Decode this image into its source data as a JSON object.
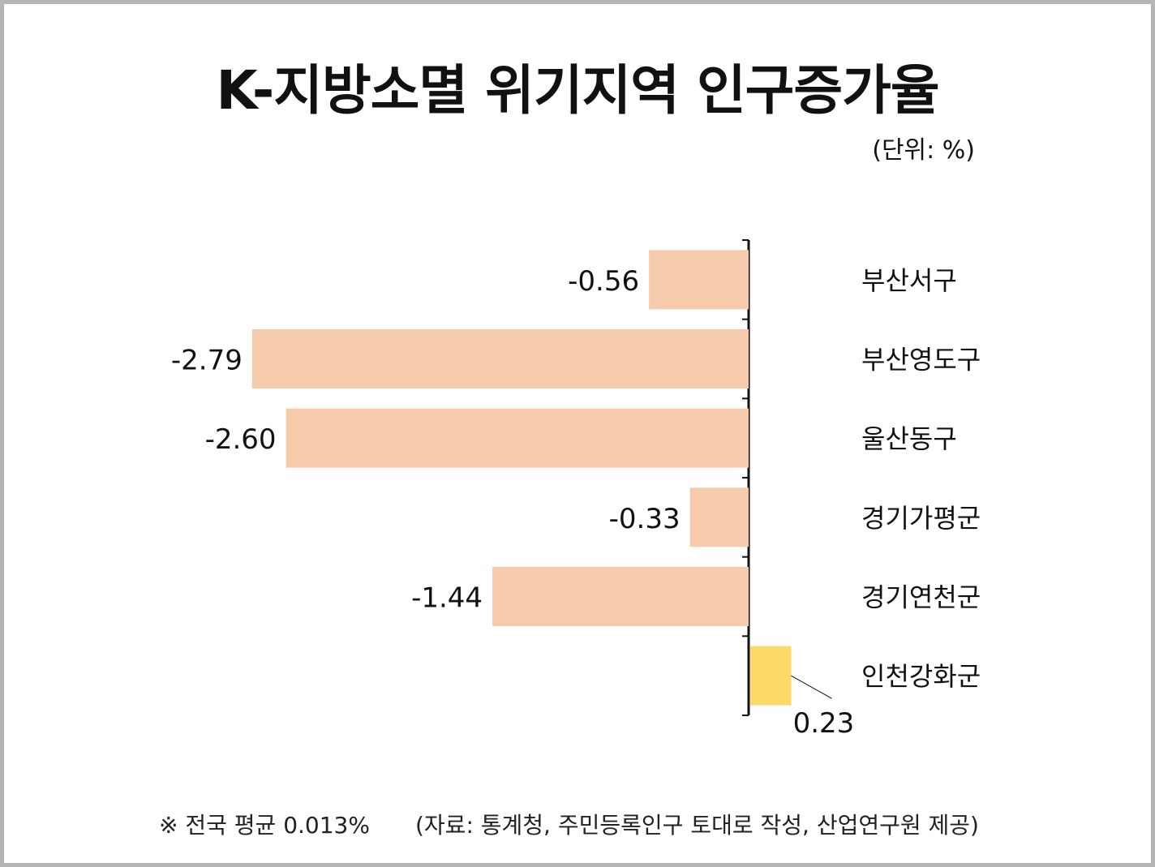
{
  "chart_data": {
    "type": "bar",
    "orientation": "horizontal",
    "title": "K-지방소멸 위기지역 인구증가율",
    "unit_label": "(단위: %)",
    "categories": [
      "부산서구",
      "부산영도구",
      "울산동구",
      "경기가평군",
      "경기연천군",
      "인천강화군"
    ],
    "values": [
      -0.56,
      -2.79,
      -2.6,
      -0.33,
      -1.44,
      0.23
    ],
    "value_labels": [
      "-0.56",
      "-2.79",
      "-2.60",
      "-0.33",
      "-1.44",
      "0.23"
    ],
    "colors": {
      "negative": "#f5cbab",
      "positive": "#fdd96a",
      "axis": "#111111",
      "text": "#111111"
    },
    "grid": false
  },
  "footer": {
    "note": "※ 전국 평균 0.013%",
    "source": "(자료: 통계청, 주민등록인구 토대로 작성, 산업연구원 제공)"
  }
}
